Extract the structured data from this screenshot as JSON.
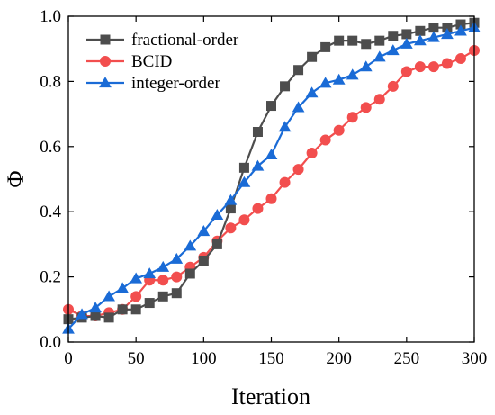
{
  "chart_data": {
    "type": "line",
    "xlabel": "Iteration",
    "ylabel": "Φ",
    "xlim": [
      0,
      300
    ],
    "ylim": [
      0.0,
      1.0
    ],
    "x_ticks": [
      0,
      50,
      100,
      150,
      200,
      250,
      300
    ],
    "y_ticks": [
      0.0,
      0.2,
      0.4,
      0.6,
      0.8,
      1.0
    ],
    "x_tick_labels": [
      "0",
      "50",
      "100",
      "150",
      "200",
      "250",
      "300"
    ],
    "y_tick_labels": [
      "0.0",
      "0.2",
      "0.4",
      "0.6",
      "0.8",
      "1.0"
    ],
    "grid": false,
    "legend_position": "top-left",
    "x": [
      0,
      10,
      20,
      30,
      40,
      50,
      60,
      70,
      80,
      90,
      100,
      110,
      120,
      130,
      140,
      150,
      160,
      170,
      180,
      190,
      200,
      210,
      220,
      230,
      240,
      250,
      260,
      270,
      280,
      290,
      300
    ],
    "series": [
      {
        "name": "fractional-order",
        "color": "#4d4d4d",
        "marker": "square",
        "values": [
          0.07,
          0.075,
          0.08,
          0.075,
          0.1,
          0.1,
          0.12,
          0.14,
          0.15,
          0.21,
          0.25,
          0.3,
          0.41,
          0.535,
          0.645,
          0.725,
          0.785,
          0.835,
          0.875,
          0.905,
          0.925,
          0.925,
          0.915,
          0.925,
          0.94,
          0.945,
          0.955,
          0.965,
          0.965,
          0.975,
          0.98
        ]
      },
      {
        "name": "BCID",
        "color": "#f24e4e",
        "marker": "circle",
        "values": [
          0.1,
          0.08,
          0.08,
          0.09,
          0.1,
          0.14,
          0.19,
          0.19,
          0.2,
          0.23,
          0.26,
          0.31,
          0.35,
          0.375,
          0.41,
          0.44,
          0.49,
          0.53,
          0.58,
          0.62,
          0.65,
          0.69,
          0.72,
          0.745,
          0.785,
          0.83,
          0.845,
          0.845,
          0.855,
          0.87,
          0.895
        ]
      },
      {
        "name": "integer-order",
        "color": "#1a6bd6",
        "marker": "triangle",
        "values": [
          0.04,
          0.085,
          0.105,
          0.14,
          0.165,
          0.195,
          0.21,
          0.23,
          0.255,
          0.295,
          0.34,
          0.39,
          0.435,
          0.49,
          0.54,
          0.575,
          0.66,
          0.72,
          0.765,
          0.795,
          0.805,
          0.82,
          0.845,
          0.875,
          0.895,
          0.915,
          0.925,
          0.935,
          0.945,
          0.955,
          0.965
        ]
      }
    ]
  }
}
